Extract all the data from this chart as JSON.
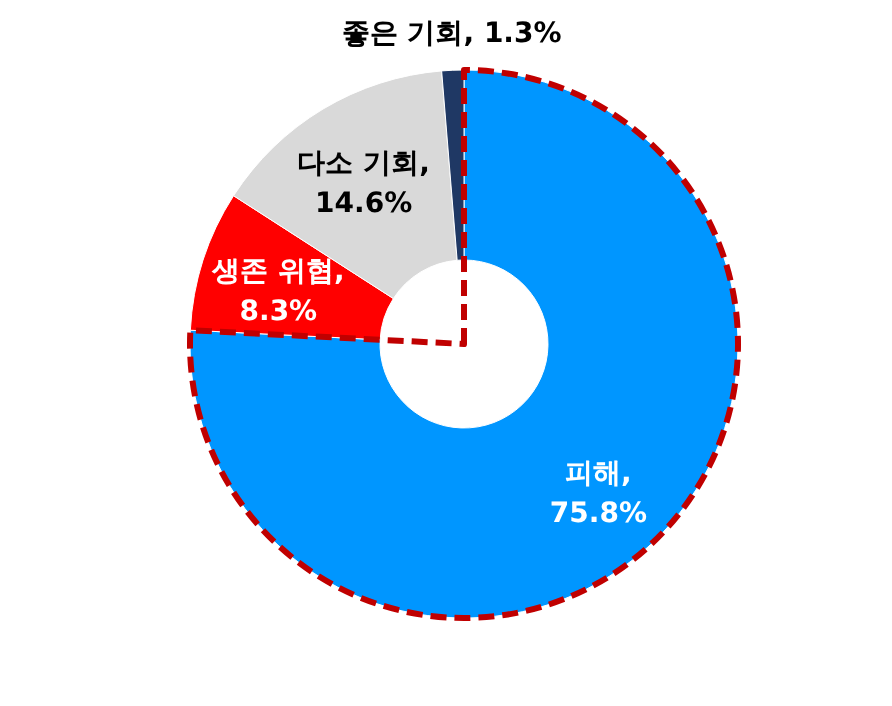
{
  "chart_data": {
    "type": "donut",
    "categories": [
      "피해",
      "생존 위협",
      "다소 기회",
      "좋은 기회"
    ],
    "values": [
      75.8,
      8.3,
      14.6,
      1.3
    ],
    "value_labels": [
      ", 75.8%",
      ", 8.3%",
      ", 14.6%",
      ", 1.3%"
    ],
    "colors": [
      "#0096ff",
      "#ff0000",
      "#d9d9d9",
      "#1f3864"
    ]
  }
}
